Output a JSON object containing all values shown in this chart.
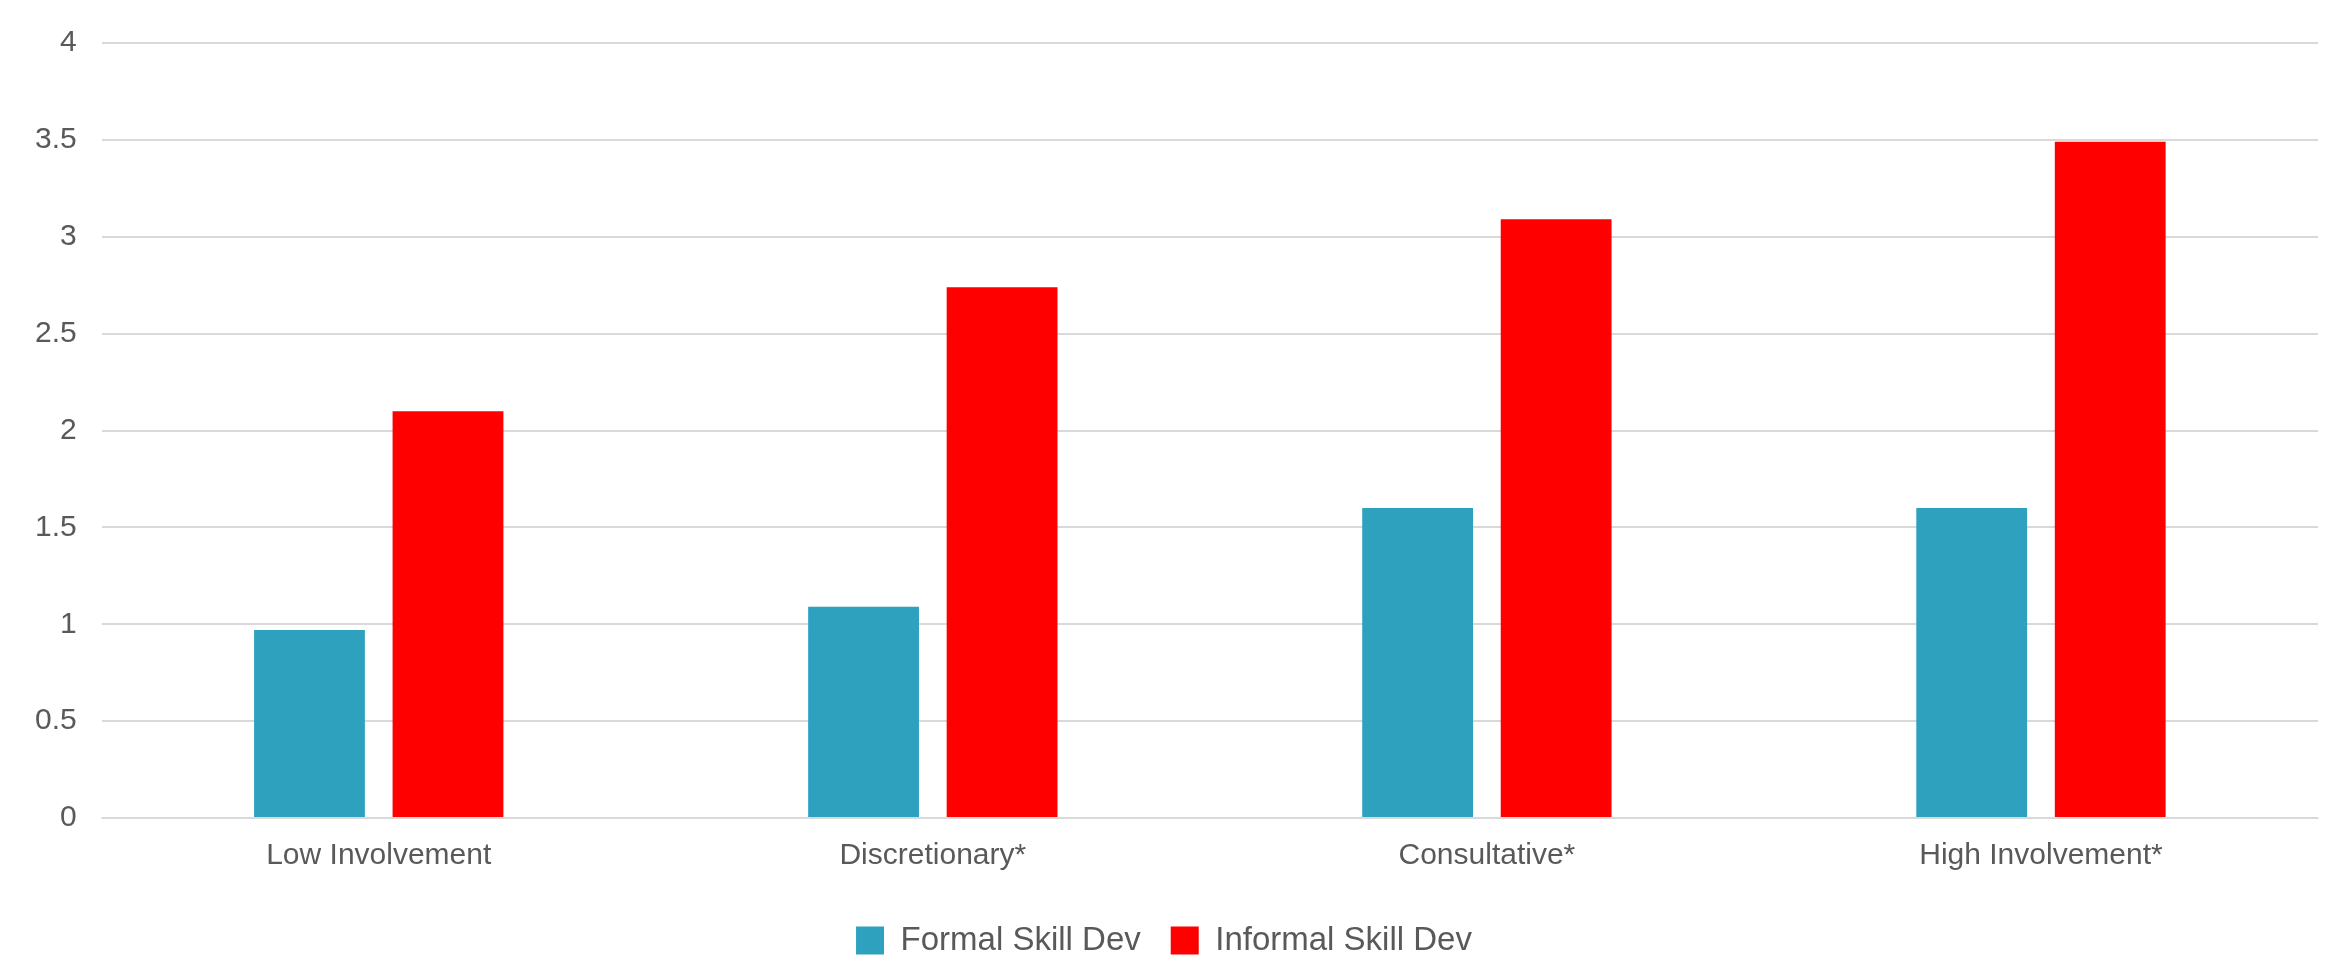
{
  "chart_data": {
    "type": "bar",
    "categories": [
      "Low Involvement",
      "Discretionary*",
      "Consultative*",
      "High Involvement*"
    ],
    "series": [
      {
        "name": "Formal Skill Dev",
        "color": "#2ea1bf",
        "values": [
          0.97,
          1.09,
          1.6,
          1.6
        ]
      },
      {
        "name": "Informal Skill Dev",
        "color": "#ff0000",
        "values": [
          2.1,
          2.74,
          3.09,
          3.49
        ]
      }
    ],
    "ylim": [
      0,
      4
    ],
    "yticks": [
      0,
      0.5,
      1,
      1.5,
      2,
      2.5,
      3,
      3.5,
      4
    ],
    "grid": "y",
    "legend": "bottom"
  }
}
